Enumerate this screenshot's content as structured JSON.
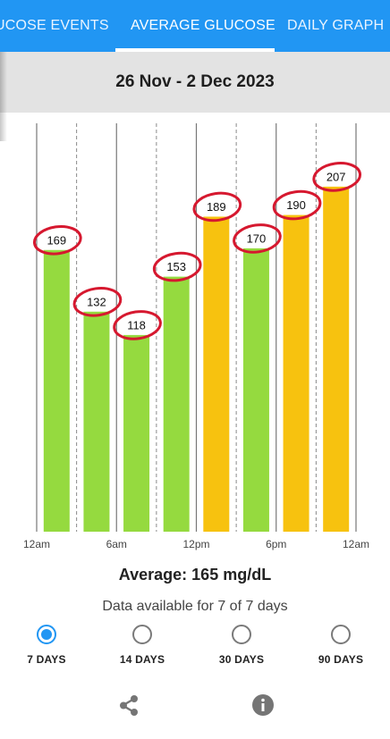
{
  "tabs": [
    {
      "label": "GLUCOSE EVENTS",
      "visible_text": "UCOSE EVENTS",
      "selected": false
    },
    {
      "label": "AVERAGE GLUCOSE",
      "selected": true
    },
    {
      "label": "DAILY GRAPH",
      "selected": false
    }
  ],
  "date_range": "26 Nov - 2 Dec 2023",
  "average_text": "Average: 165 mg/dL",
  "data_available_text": "Data available for 7 of 7 days",
  "range_options": [
    {
      "label": "7 DAYS",
      "selected": true
    },
    {
      "label": "14 DAYS",
      "selected": false
    },
    {
      "label": "30 DAYS",
      "selected": false
    },
    {
      "label": "90 DAYS",
      "selected": false
    }
  ],
  "icons": {
    "share": "share-icon",
    "info": "info-icon"
  },
  "colors": {
    "accent": "#2196f3",
    "in_range_bar": "#95da3f",
    "high_bar": "#f7c20f",
    "annotation": "#d6182f"
  },
  "chart_data": {
    "type": "bar",
    "title": "",
    "xlabel": "",
    "ylabel": "",
    "x_ticks": [
      "12am",
      "6am",
      "12pm",
      "6pm",
      "12am"
    ],
    "categories": [
      "12am-3am",
      "3am-6am",
      "6am-9am",
      "9am-12pm",
      "12pm-3pm",
      "3pm-6pm",
      "6pm-9pm",
      "9pm-12am"
    ],
    "values": [
      169,
      132,
      118,
      153,
      189,
      170,
      190,
      207
    ],
    "value_labels": [
      "169",
      "132",
      "118",
      "153",
      "189",
      "170",
      "190",
      "207"
    ],
    "bar_colors": [
      "in_range",
      "in_range",
      "in_range",
      "in_range",
      "high",
      "in_range",
      "high",
      "high"
    ],
    "ylim": [
      0,
      245
    ],
    "grid": true,
    "legend": "none",
    "annotations": "values circled by hand in red"
  }
}
